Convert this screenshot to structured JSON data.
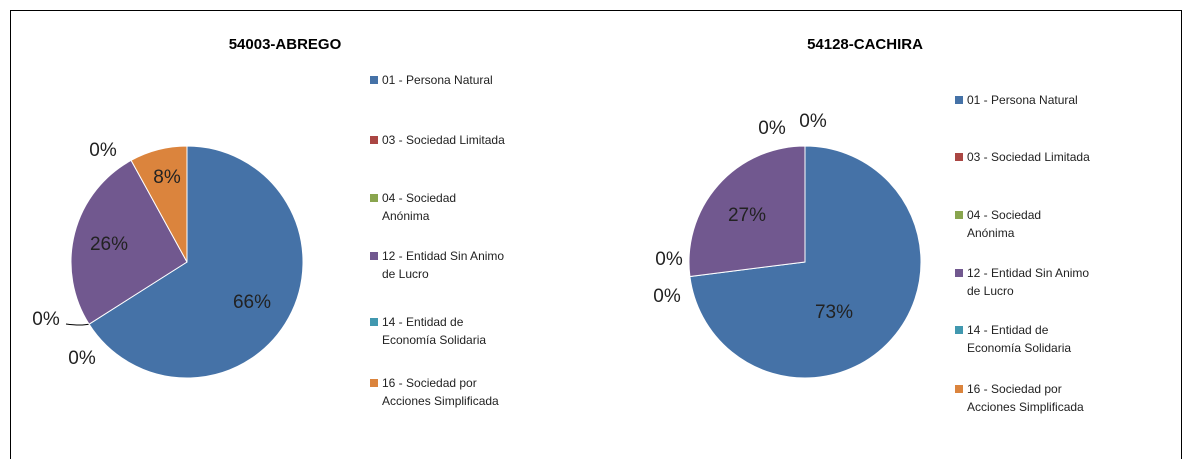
{
  "chart_data": [
    {
      "type": "pie",
      "title": "54003-ABREGO",
      "categories": [
        "01 - Persona Natural",
        "03 - Sociedad Limitada",
        "04 - Sociedad Anónima",
        "12 - Entidad Sin Animo de Lucro",
        "14 - Entidad de Economía Solidaria",
        "16 - Sociedad por Acciones Simplificada"
      ],
      "values": [
        66,
        0,
        0,
        26,
        0,
        8
      ],
      "value_labels": [
        "66%",
        "0%",
        "0%",
        "26%",
        "0%",
        "8%"
      ],
      "colors": [
        "#4572a7",
        "#aa4643",
        "#89a54e",
        "#71588f",
        "#4198af",
        "#db843d"
      ]
    },
    {
      "type": "pie",
      "title": "54128-CACHIRA",
      "categories": [
        "01 - Persona Natural",
        "03 - Sociedad Limitada",
        "04 - Sociedad Anónima",
        "12 - Entidad Sin Animo de Lucro",
        "14 - Entidad de Economía Solidaria",
        "16 - Sociedad por Acciones Simplificada"
      ],
      "values": [
        73,
        0,
        0,
        27,
        0,
        0
      ],
      "value_labels": [
        "73%",
        "0%",
        "0%",
        "27%",
        "0%",
        "0%"
      ],
      "colors": [
        "#4572a7",
        "#aa4643",
        "#89a54e",
        "#71588f",
        "#4198af",
        "#db843d"
      ]
    }
  ]
}
